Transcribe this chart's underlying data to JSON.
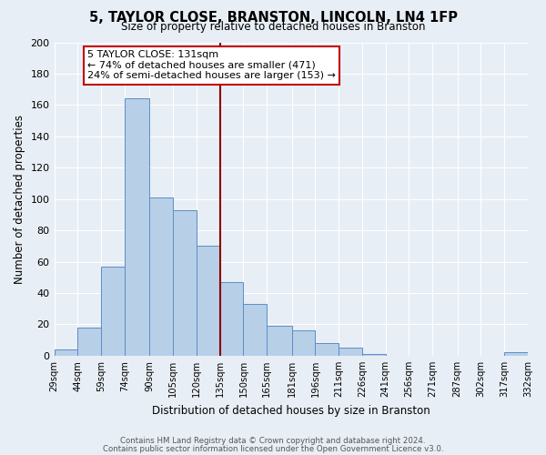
{
  "title": "5, TAYLOR CLOSE, BRANSTON, LINCOLN, LN4 1FP",
  "subtitle": "Size of property relative to detached houses in Branston",
  "xlabel": "Distribution of detached houses by size in Branston",
  "ylabel": "Number of detached properties",
  "bar_color": "#b8cfe8",
  "bar_edge_color": "#5b8ec4",
  "background_color": "#e8eef5",
  "grid_color": "#ffffff",
  "bin_labels": [
    "29sqm",
    "44sqm",
    "59sqm",
    "74sqm",
    "90sqm",
    "105sqm",
    "120sqm",
    "135sqm",
    "150sqm",
    "165sqm",
    "181sqm",
    "196sqm",
    "211sqm",
    "226sqm",
    "241sqm",
    "256sqm",
    "271sqm",
    "287sqm",
    "302sqm",
    "317sqm",
    "332sqm"
  ],
  "bar_heights": [
    4,
    18,
    57,
    164,
    101,
    93,
    70,
    47,
    33,
    19,
    16,
    8,
    5,
    1,
    0,
    0,
    0,
    0,
    0,
    2,
    0
  ],
  "bin_edges": [
    29,
    44,
    59,
    74,
    90,
    105,
    120,
    135,
    150,
    165,
    181,
    196,
    211,
    226,
    241,
    256,
    271,
    287,
    302,
    317,
    332
  ],
  "property_line_x": 135,
  "ylim": [
    0,
    200
  ],
  "yticks": [
    0,
    20,
    40,
    60,
    80,
    100,
    120,
    140,
    160,
    180,
    200
  ],
  "annotation_title": "5 TAYLOR CLOSE: 131sqm",
  "annotation_line1": "← 74% of detached houses are smaller (471)",
  "annotation_line2": "24% of semi-detached houses are larger (153) →",
  "annotation_box_color": "#ffffff",
  "annotation_box_edge": "#c00000",
  "prop_line_color": "#8b0000",
  "footnote1": "Contains HM Land Registry data © Crown copyright and database right 2024.",
  "footnote2": "Contains public sector information licensed under the Open Government Licence v3.0."
}
